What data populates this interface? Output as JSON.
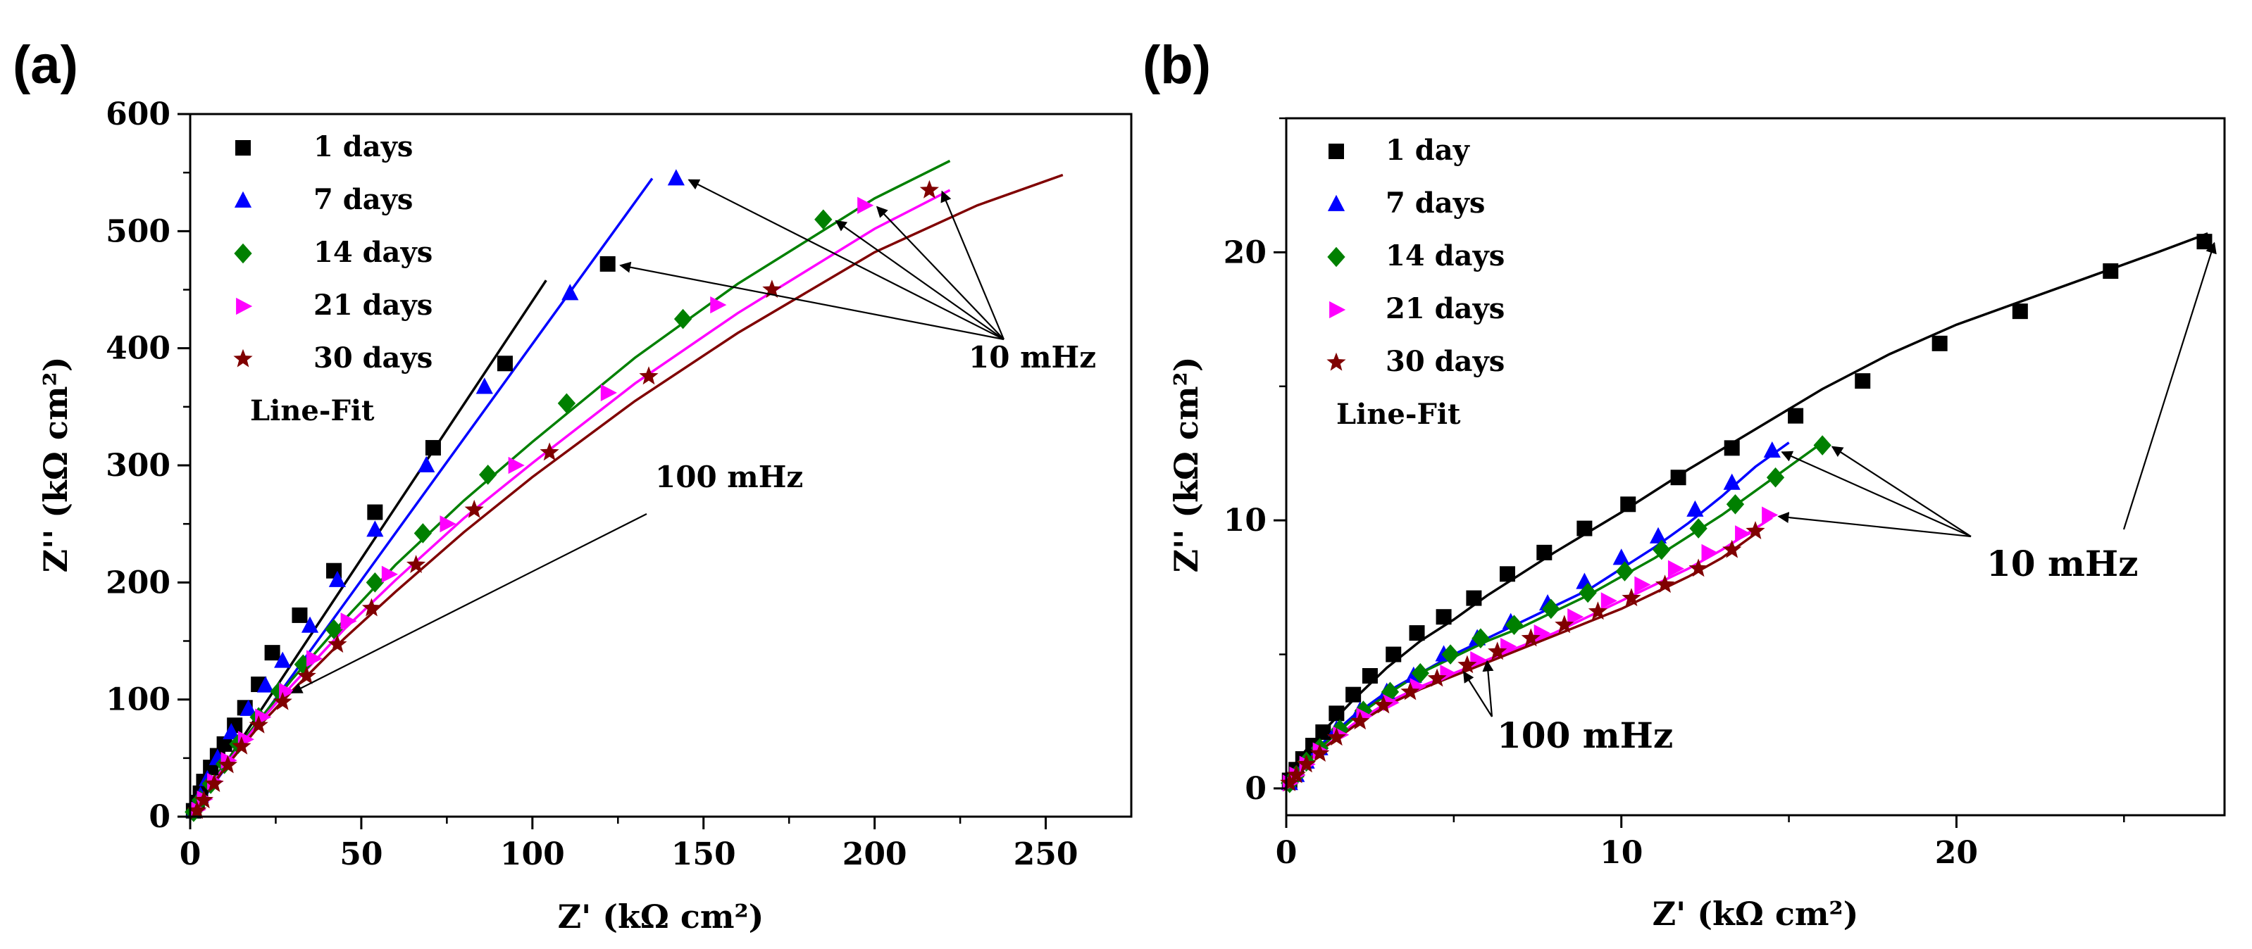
{
  "chart_data": [
    {
      "type": "scatter",
      "panel_label": "(a)",
      "xlabel": "Z' (kΩ cm²)",
      "ylabel": "Z'' (kΩ cm²)",
      "xlim": [
        0,
        275
      ],
      "ylim": [
        0,
        600
      ],
      "xticks": [
        0,
        50,
        100,
        150,
        200,
        250
      ],
      "yticks": [
        0,
        100,
        200,
        300,
        400,
        500,
        600
      ],
      "legend_position": "top-left",
      "legend_extra": "Line-Fit",
      "series": [
        {
          "name": "1 days",
          "marker": "square",
          "color": "#000000",
          "x": [
            1,
            2,
            3,
            4,
            6,
            8,
            10,
            13,
            16,
            20,
            24,
            32,
            42,
            54,
            71,
            92,
            122
          ],
          "y": [
            5,
            12,
            20,
            30,
            42,
            52,
            62,
            78,
            93,
            113,
            140,
            172,
            210,
            260,
            315,
            387,
            472
          ],
          "fit_x": [
            0,
            104
          ],
          "fit_y": [
            0,
            458
          ]
        },
        {
          "name": "7 days",
          "marker": "triangle-up",
          "color": "#0000ff",
          "x": [
            1,
            3,
            5,
            8,
            12,
            17,
            22,
            27,
            35,
            43,
            54,
            69,
            86,
            111,
            142
          ],
          "y": [
            5,
            18,
            32,
            50,
            72,
            92,
            112,
            133,
            163,
            202,
            245,
            300,
            367,
            447,
            545
          ],
          "fit_x": [
            0,
            135
          ],
          "fit_y": [
            0,
            545
          ]
        },
        {
          "name": "14 days",
          "marker": "diamond",
          "color": "#008000",
          "x": [
            1,
            3,
            6,
            10,
            14,
            20,
            26,
            33,
            42,
            54,
            68,
            87,
            110,
            144,
            185
          ],
          "y": [
            4,
            14,
            28,
            45,
            62,
            85,
            107,
            130,
            160,
            200,
            242,
            292,
            353,
            425,
            510
          ],
          "fit_x": [
            0,
            4,
            10,
            20,
            30,
            45,
            60,
            80,
            100,
            130,
            160,
            200,
            222
          ],
          "fit_y": [
            0,
            20,
            45,
            82,
            118,
            168,
            215,
            270,
            320,
            392,
            455,
            528,
            560
          ]
        },
        {
          "name": "21 days",
          "marker": "triangle-right",
          "color": "#ff00ff",
          "x": [
            2,
            4,
            7,
            11,
            16,
            21,
            28,
            36,
            46,
            58,
            75,
            95,
            122,
            154,
            197
          ],
          "y": [
            6,
            15,
            30,
            48,
            66,
            85,
            107,
            135,
            167,
            207,
            250,
            300,
            362,
            437,
            522
          ],
          "fit_x": [
            0,
            4,
            10,
            20,
            30,
            45,
            60,
            80,
            100,
            130,
            160,
            200,
            222
          ],
          "fit_y": [
            0,
            18,
            43,
            80,
            113,
            160,
            202,
            255,
            302,
            370,
            430,
            502,
            535
          ]
        },
        {
          "name": "30 days",
          "marker": "star",
          "color": "#800000",
          "x": [
            2,
            4,
            7,
            11,
            15,
            20,
            27,
            34,
            43,
            53,
            66,
            83,
            105,
            134,
            170,
            216
          ],
          "y": [
            5,
            14,
            28,
            44,
            60,
            78,
            98,
            120,
            147,
            178,
            215,
            262,
            311,
            376,
            450,
            535
          ],
          "fit_x": [
            0,
            4,
            10,
            20,
            30,
            45,
            60,
            80,
            100,
            130,
            160,
            200,
            230,
            255
          ],
          "fit_y": [
            0,
            17,
            41,
            77,
            108,
            152,
            192,
            243,
            290,
            355,
            413,
            482,
            522,
            548
          ]
        }
      ],
      "annotations": [
        {
          "text": "10 mHz",
          "x": 245,
          "y": 380
        },
        {
          "text": "100 mHz",
          "x": 140,
          "y": 285
        }
      ]
    },
    {
      "type": "scatter",
      "panel_label": "(b)",
      "xlabel": "Z' (kΩ cm²)",
      "ylabel": "Z'' (kΩ cm²)",
      "xlim": [
        0,
        28
      ],
      "ylim": [
        -1,
        25
      ],
      "xticks": [
        0,
        10,
        20
      ],
      "yticks": [
        0,
        10,
        20
      ],
      "legend_position": "top-left",
      "legend_extra": "Line-Fit",
      "series": [
        {
          "name": "1 day",
          "marker": "square",
          "color": "#000000",
          "x": [
            0.1,
            0.3,
            0.5,
            0.8,
            1.1,
            1.5,
            2.0,
            2.5,
            3.2,
            3.9,
            4.7,
            5.6,
            6.6,
            7.7,
            8.9,
            10.2,
            11.7,
            13.3,
            15.2,
            17.2,
            19.5,
            21.9,
            24.6,
            27.4
          ],
          "y": [
            0.3,
            0.7,
            1.1,
            1.6,
            2.1,
            2.8,
            3.5,
            4.2,
            5.0,
            5.8,
            6.4,
            7.1,
            8.0,
            8.8,
            9.7,
            10.6,
            11.6,
            12.7,
            13.9,
            15.2,
            16.6,
            17.8,
            19.3,
            20.4
          ],
          "fit_x": [
            0,
            0.2,
            0.5,
            1,
            2,
            3,
            4,
            5,
            6,
            8,
            10,
            12,
            14,
            16,
            18,
            20,
            22,
            24,
            26,
            27.5
          ],
          "fit_y": [
            0,
            0.8,
            1.3,
            2.0,
            3.3,
            4.5,
            5.5,
            6.3,
            7.2,
            8.8,
            10.3,
            11.9,
            13.4,
            14.9,
            16.2,
            17.3,
            18.2,
            19.1,
            20.0,
            20.7
          ]
        },
        {
          "name": "7 days",
          "marker": "triangle-up",
          "color": "#0000ff",
          "x": [
            0.1,
            0.3,
            0.6,
            1.0,
            1.5,
            2.2,
            3.0,
            3.8,
            4.7,
            5.7,
            6.7,
            7.8,
            8.9,
            10.0,
            11.1,
            12.2,
            13.3,
            14.5
          ],
          "y": [
            0.2,
            0.5,
            1.0,
            1.5,
            2.2,
            2.9,
            3.6,
            4.2,
            5.0,
            5.6,
            6.2,
            6.9,
            7.7,
            8.6,
            9.4,
            10.4,
            11.4,
            12.6
          ],
          "fit_x": [
            0,
            0.3,
            1,
            2,
            3,
            4,
            5,
            6,
            7,
            8,
            9,
            10,
            11,
            12,
            13,
            14,
            15
          ],
          "fit_y": [
            0,
            0.7,
            1.6,
            2.7,
            3.6,
            4.3,
            5.0,
            5.6,
            6.2,
            6.8,
            7.4,
            8.2,
            9.0,
            9.9,
            10.9,
            12.0,
            12.9
          ]
        },
        {
          "name": "14 days",
          "marker": "diamond",
          "color": "#008000",
          "x": [
            0.1,
            0.3,
            0.6,
            1.0,
            1.6,
            2.3,
            3.1,
            4.0,
            4.9,
            5.8,
            6.8,
            7.9,
            9.0,
            10.1,
            11.2,
            12.3,
            13.4,
            14.6,
            16.0
          ],
          "y": [
            0.2,
            0.5,
            1.0,
            1.5,
            2.2,
            2.9,
            3.6,
            4.3,
            5.0,
            5.6,
            6.1,
            6.7,
            7.3,
            8.1,
            8.9,
            9.7,
            10.6,
            11.6,
            12.8
          ],
          "fit_x": [
            0,
            0.3,
            1,
            2,
            3,
            4,
            5,
            6,
            7,
            8,
            9,
            10,
            11,
            12,
            13,
            14,
            15,
            16
          ],
          "fit_y": [
            0,
            0.6,
            1.5,
            2.6,
            3.5,
            4.3,
            4.9,
            5.5,
            6.0,
            6.6,
            7.2,
            7.9,
            8.6,
            9.4,
            10.2,
            11.1,
            12.0,
            12.9
          ]
        },
        {
          "name": "21 days",
          "marker": "triangle-right",
          "color": "#ff00ff",
          "x": [
            0.1,
            0.3,
            0.6,
            1.0,
            1.6,
            2.3,
            3.1,
            3.9,
            4.8,
            5.7,
            6.6,
            7.6,
            8.6,
            9.6,
            10.6,
            11.6,
            12.6,
            13.6,
            14.4
          ],
          "y": [
            0.2,
            0.5,
            0.9,
            1.4,
            2.0,
            2.7,
            3.2,
            3.8,
            4.3,
            4.8,
            5.3,
            5.8,
            6.4,
            7.0,
            7.6,
            8.2,
            8.8,
            9.5,
            10.2
          ],
          "fit_x": [
            0,
            0.3,
            1,
            2,
            3,
            4,
            5,
            6,
            7,
            8,
            9,
            10,
            11,
            12,
            13,
            14,
            14.5
          ],
          "fit_y": [
            0,
            0.6,
            1.4,
            2.4,
            3.2,
            3.8,
            4.3,
            4.8,
            5.3,
            5.8,
            6.4,
            7.0,
            7.6,
            8.2,
            8.9,
            9.7,
            10.1
          ]
        },
        {
          "name": "30 days",
          "marker": "star",
          "color": "#800000",
          "x": [
            0.1,
            0.3,
            0.6,
            1.0,
            1.5,
            2.2,
            2.9,
            3.7,
            4.5,
            5.4,
            6.3,
            7.3,
            8.3,
            9.3,
            10.3,
            11.3,
            12.3,
            13.3,
            14.0
          ],
          "y": [
            0.2,
            0.5,
            0.9,
            1.3,
            1.9,
            2.5,
            3.1,
            3.6,
            4.1,
            4.6,
            5.1,
            5.6,
            6.1,
            6.6,
            7.1,
            7.6,
            8.2,
            8.9,
            9.6
          ],
          "fit_x": [
            0,
            0.3,
            1,
            2,
            3,
            4,
            5,
            6,
            7,
            8,
            9,
            10,
            11,
            12,
            13,
            14
          ],
          "fit_y": [
            0,
            0.6,
            1.4,
            2.3,
            3.1,
            3.7,
            4.2,
            4.7,
            5.2,
            5.7,
            6.2,
            6.7,
            7.3,
            7.9,
            8.6,
            9.5
          ]
        }
      ],
      "annotations": [
        {
          "text": "10 mHz",
          "x": 21,
          "y": 7.9
        },
        {
          "text": "100 mHz",
          "x": 6.4,
          "y": 1.2
        }
      ]
    }
  ]
}
